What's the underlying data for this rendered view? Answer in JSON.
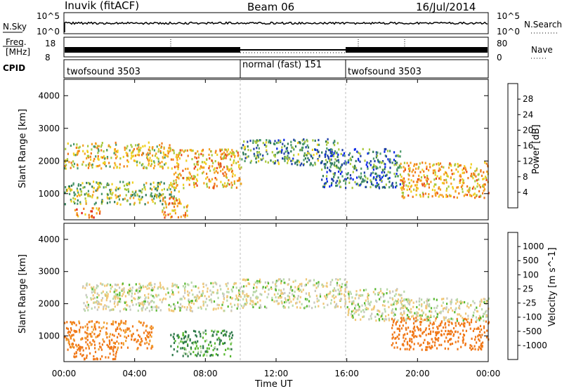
{
  "header": {
    "station": "Inuvik (fitACF)",
    "beam": "Beam 06",
    "date": "16/Jul/2014"
  },
  "top_panels": {
    "nsky_label": "N.Sky",
    "nsky_ticks": [
      "10^5",
      "10^0"
    ],
    "nsearch_label": "N.Search",
    "nsearch_ticks": [
      "10^5",
      "10^0"
    ],
    "freq_label_1": "Freq.",
    "freq_label_2": "[MHz]",
    "freq_ticks": [
      "18",
      "8"
    ],
    "nave_label": "Nave",
    "nave_ticks": [
      "80",
      "0"
    ],
    "cpid_label": "CPID",
    "cpid_segments": [
      {
        "label": "twofsound 3503",
        "start_hour": 0,
        "end_hour": 10
      },
      {
        "label": "normal (fast) 151",
        "start_hour": 10,
        "end_hour": 16
      },
      {
        "label": "twofsound 3503",
        "start_hour": 16,
        "end_hour": 24
      }
    ]
  },
  "colors": {
    "power_scale": [
      "#0a28e6",
      "#1f3fa8",
      "#2f7a55",
      "#4c9a6a",
      "#a8c83c",
      "#f0d020",
      "#f5a020",
      "#f07a18",
      "#e84818",
      "#e01010"
    ],
    "velocity_scale": [
      "#2a3cbe",
      "#2f5fa0",
      "#2f7a4a",
      "#58b830",
      "#b8d8a8",
      "#c8c8c0",
      "#f0c878",
      "#f0a030",
      "#f07818",
      "#e84010",
      "#e01010"
    ],
    "power_colorbar": [
      "#0a28e6",
      "#1f3fa8",
      "#2f7a55",
      "#4c9a6a",
      "#a8c83c",
      "#f0d020",
      "#f5a020",
      "#f07a18",
      "#e84818",
      "#e01010"
    ],
    "velocity_colorbar": [
      "#e01010",
      "#e84010",
      "#f07818",
      "#f0a030",
      "#c8c8c0",
      "#58b830",
      "#2f7a4a",
      "#2f5fa0",
      "#2a3cbe"
    ]
  },
  "chart_data": [
    {
      "type": "heatmap",
      "ylabel": "Slant Range [km]",
      "y_ticks": [
        "1000",
        "2000",
        "3000",
        "4000"
      ],
      "ylim": [
        200,
        4500
      ],
      "xlim": [
        0,
        24
      ],
      "colorbar_label": "Power [dB]",
      "colorbar_ticks": [
        "4",
        "8",
        "12",
        "16",
        "20",
        "24",
        "28"
      ],
      "bands": [
        {
          "x_start": 0.0,
          "x_end": 6.0,
          "y_low": 1800,
          "y_high": 2600,
          "value": 18
        },
        {
          "x_start": 0.0,
          "x_end": 6.5,
          "y_low": 700,
          "y_high": 1400,
          "value": 14
        },
        {
          "x_start": 0.5,
          "x_end": 2.0,
          "y_low": 300,
          "y_high": 600,
          "value": 24
        },
        {
          "x_start": 5.5,
          "x_end": 7.0,
          "y_low": 300,
          "y_high": 900,
          "value": 22
        },
        {
          "x_start": 6.0,
          "x_end": 10.0,
          "y_low": 1200,
          "y_high": 2400,
          "value": 20
        },
        {
          "x_start": 10.0,
          "x_end": 15.5,
          "y_low": 1900,
          "y_high": 2700,
          "value": 10
        },
        {
          "x_start": 14.5,
          "x_end": 19.0,
          "y_low": 1200,
          "y_high": 2400,
          "value": 8
        },
        {
          "x_start": 19.0,
          "x_end": 24.0,
          "y_low": 900,
          "y_high": 2000,
          "value": 20
        }
      ]
    },
    {
      "type": "heatmap",
      "ylabel": "Slant Range [km]",
      "y_ticks": [
        "1000",
        "2000",
        "3000",
        "4000"
      ],
      "ylim": [
        200,
        4500
      ],
      "xlim": [
        0,
        24
      ],
      "xlabel": "Time UT",
      "x_ticks": [
        "00:00",
        "04:00",
        "08:00",
        "12:00",
        "16:00",
        "20:00",
        "00:00"
      ],
      "colorbar_label": "Velocity [m s^-1]",
      "colorbar_ticks": [
        "1000",
        "500",
        "100",
        "25",
        "-25",
        "-100",
        "-500",
        "-1000"
      ],
      "bands": [
        {
          "x_start": 0.0,
          "x_end": 5.0,
          "y_low": 600,
          "y_high": 1500,
          "value": -200
        },
        {
          "x_start": 0.5,
          "x_end": 3.0,
          "y_low": 300,
          "y_high": 700,
          "value": -300
        },
        {
          "x_start": 1.0,
          "x_end": 10.0,
          "y_low": 1800,
          "y_high": 2700,
          "value": 0
        },
        {
          "x_start": 6.0,
          "x_end": 9.5,
          "y_low": 400,
          "y_high": 1200,
          "value": 80
        },
        {
          "x_start": 10.0,
          "x_end": 16.0,
          "y_low": 1900,
          "y_high": 2800,
          "value": 0
        },
        {
          "x_start": 16.0,
          "x_end": 19.5,
          "y_low": 1500,
          "y_high": 2500,
          "value": 0
        },
        {
          "x_start": 18.5,
          "x_end": 24.0,
          "y_low": 600,
          "y_high": 1600,
          "value": -250
        },
        {
          "x_start": 19.0,
          "x_end": 24.0,
          "y_low": 1500,
          "y_high": 2200,
          "value": 0
        }
      ]
    }
  ]
}
